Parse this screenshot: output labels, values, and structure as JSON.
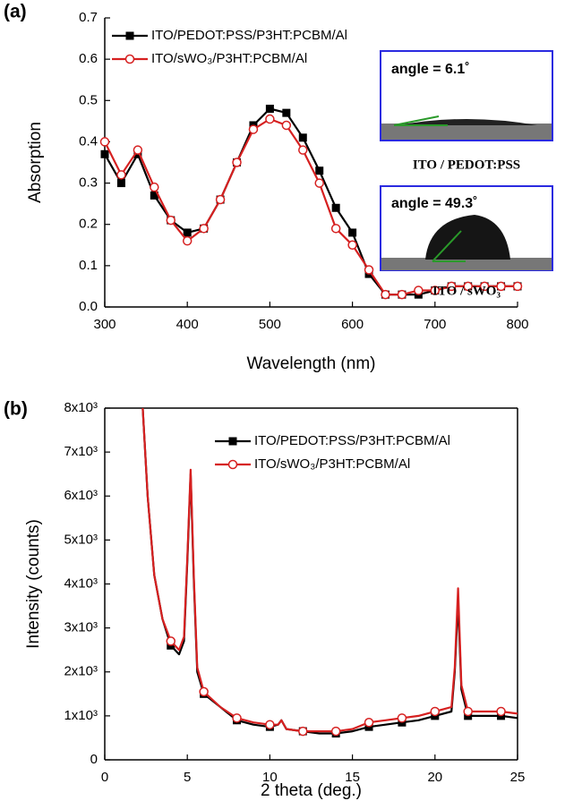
{
  "chart_data": [
    {
      "type": "line",
      "panel_label": "(a)",
      "x_label": "Wavelength (nm)",
      "y_label": "Absorption",
      "xlim": [
        300,
        800
      ],
      "xticks": [
        300,
        400,
        500,
        600,
        700,
        800
      ],
      "ylim": [
        0,
        0.7
      ],
      "yticks": [
        {
          "value": 0,
          "label": "0.0"
        },
        0.1,
        0.2,
        0.3,
        0.4,
        0.5,
        0.6,
        0.7
      ],
      "legend": "upper left",
      "x": [
        300,
        320,
        340,
        360,
        380,
        400,
        420,
        440,
        460,
        480,
        500,
        520,
        540,
        560,
        580,
        600,
        620,
        640,
        660,
        680,
        700,
        720,
        740,
        760,
        780,
        800
      ],
      "series": [
        {
          "name": "ITO/PEDOT:PSS/P3HT:PCBM/Al",
          "color": "#000000",
          "marker": "square",
          "values": [
            0.37,
            0.3,
            0.37,
            0.27,
            0.21,
            0.18,
            0.19,
            0.26,
            0.35,
            0.44,
            0.48,
            0.47,
            0.41,
            0.33,
            0.24,
            0.18,
            0.08,
            0.03,
            0.03,
            0.03,
            0.04,
            0.05,
            0.05,
            0.05,
            0.05,
            0.05
          ]
        },
        {
          "name": "ITO/sWO₃/P3HT:PCBM/Al",
          "color": "#d62020",
          "marker": "circle",
          "values": [
            0.4,
            0.32,
            0.38,
            0.29,
            0.21,
            0.16,
            0.19,
            0.26,
            0.35,
            0.43,
            0.455,
            0.44,
            0.38,
            0.3,
            0.19,
            0.15,
            0.09,
            0.03,
            0.03,
            0.04,
            0.04,
            0.05,
            0.05,
            0.05,
            0.05,
            0.05
          ]
        }
      ],
      "insets": [
        {
          "angle_label": "angle = 6.1˚",
          "caption": "ITO / PEDOT:PSS"
        },
        {
          "angle_label": "angle = 49.3˚",
          "caption": "ITO / sWO₃"
        }
      ]
    },
    {
      "type": "line",
      "panel_label": "(b)",
      "x_label": "2 theta (deg.)",
      "y_label": "Intensity (counts)",
      "xlim": [
        0,
        25
      ],
      "xticks": [
        0,
        5,
        10,
        15,
        20,
        25
      ],
      "ylim": [
        0,
        8000
      ],
      "yticks": [
        0,
        {
          "value": 1000,
          "label": "1x10³"
        },
        {
          "value": 2000,
          "label": "2x10³"
        },
        {
          "value": 3000,
          "label": "3x10³"
        },
        {
          "value": 4000,
          "label": "4x10³"
        },
        {
          "value": 5000,
          "label": "5x10³"
        },
        {
          "value": 6000,
          "label": "6x10³"
        },
        {
          "value": 7000,
          "label": "7x10³"
        },
        {
          "value": 8000,
          "label": "8x10³"
        }
      ],
      "legend": "upper right",
      "x": [
        2.3,
        2.6,
        3,
        3.5,
        4,
        4.5,
        4.8,
        5,
        5.2,
        5.4,
        5.6,
        6,
        7,
        8,
        9,
        10,
        10.5,
        10.7,
        11,
        12,
        13,
        14,
        15,
        16,
        17,
        18,
        19,
        20,
        21,
        21.2,
        21.4,
        21.6,
        22,
        23,
        24,
        25
      ],
      "series": [
        {
          "name": "ITO/PEDOT:PSS/P3HT:PCBM/Al",
          "color": "#000000",
          "marker": "square",
          "values": [
            8000,
            6000,
            4200,
            3200,
            2600,
            2400,
            2700,
            4500,
            6500,
            4000,
            2000,
            1500,
            1200,
            900,
            800,
            750,
            800,
            900,
            700,
            650,
            600,
            600,
            650,
            750,
            800,
            850,
            900,
            1000,
            1100,
            2000,
            3600,
            1600,
            1000,
            1000,
            1000,
            950
          ]
        },
        {
          "name": "ITO/sWO₃/P3HT:PCBM/Al",
          "color": "#d62020",
          "marker": "circle",
          "values": [
            8000,
            6000,
            4200,
            3200,
            2700,
            2500,
            2800,
            4600,
            6600,
            4100,
            2100,
            1550,
            1200,
            950,
            850,
            800,
            800,
            900,
            700,
            650,
            650,
            650,
            700,
            850,
            900,
            950,
            1000,
            1100,
            1200,
            2100,
            3900,
            1700,
            1100,
            1100,
            1100,
            1050
          ]
        }
      ]
    }
  ]
}
